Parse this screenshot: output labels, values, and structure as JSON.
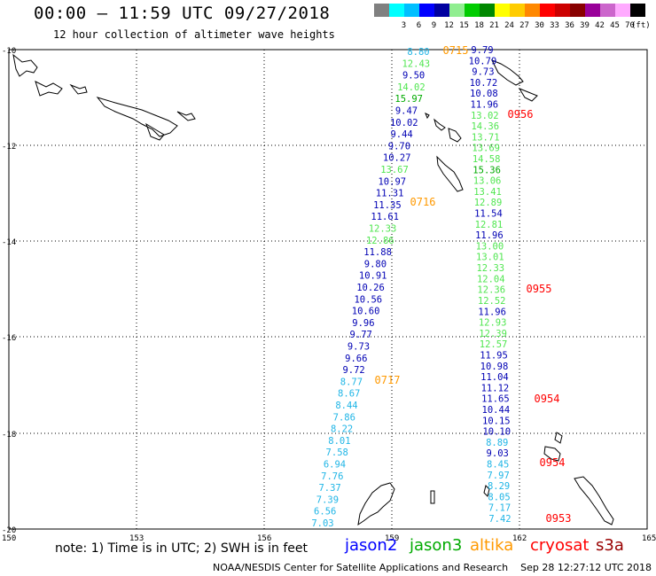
{
  "header": {
    "title": "00:00 – 11:59 UTC 09/27/2018",
    "subtitle": "12 hour collection of altimeter wave heights"
  },
  "scale": {
    "unit": "(ft)",
    "swatches": [
      {
        "color": "#808080",
        "label": ""
      },
      {
        "color": "#00ffff",
        "label": "3"
      },
      {
        "color": "#00bfff",
        "label": "6"
      },
      {
        "color": "#0000ff",
        "label": "9"
      },
      {
        "color": "#0000a0",
        "label": "12"
      },
      {
        "color": "#90ee90",
        "label": "15"
      },
      {
        "color": "#00cc00",
        "label": "18"
      },
      {
        "color": "#008800",
        "label": "21"
      },
      {
        "color": "#ffff00",
        "label": "24"
      },
      {
        "color": "#ffcc00",
        "label": "27"
      },
      {
        "color": "#ff8800",
        "label": "30"
      },
      {
        "color": "#ff0000",
        "label": "33"
      },
      {
        "color": "#cc0000",
        "label": "36"
      },
      {
        "color": "#880000",
        "label": "39"
      },
      {
        "color": "#990099",
        "label": "42"
      },
      {
        "color": "#cc66cc",
        "label": "45"
      },
      {
        "color": "#ffaaff",
        "label": "70"
      },
      {
        "color": "#000000",
        "label": ""
      }
    ]
  },
  "map": {
    "lat_labels": [
      "-10",
      "-12",
      "-14",
      "-16",
      "-18",
      "-20"
    ],
    "lon_labels": [
      "150",
      "153",
      "156",
      "159",
      "162",
      "165"
    ],
    "colors": {
      "cyan": "#1fb5e6",
      "navy": "#0000b4",
      "lgreen": "#50e650",
      "orange": "#ff9900",
      "red": "#ff0000"
    },
    "west_track": [
      {
        "v": "8.80",
        "c": "cyan"
      },
      {
        "v": "12.43",
        "c": "lgreen"
      },
      {
        "v": "9.50",
        "c": "navy"
      },
      {
        "v": "14.02",
        "c": "lgreen"
      },
      {
        "v": "15.97",
        "c": "green"
      },
      {
        "v": "9.47",
        "c": "navy"
      },
      {
        "v": "10.02",
        "c": "navy"
      },
      {
        "v": "9.44",
        "c": "navy"
      },
      {
        "v": "9.70",
        "c": "navy"
      },
      {
        "v": "10.27",
        "c": "navy"
      },
      {
        "v": "13.67",
        "c": "lgreen"
      },
      {
        "v": "10.97",
        "c": "navy"
      },
      {
        "v": "11.31",
        "c": "navy"
      },
      {
        "v": "11.35",
        "c": "navy"
      },
      {
        "v": "11.61",
        "c": "navy"
      },
      {
        "v": "12.33",
        "c": "lgreen"
      },
      {
        "v": "12.86",
        "c": "lgreen"
      },
      {
        "v": "11.88",
        "c": "navy"
      },
      {
        "v": "9.80",
        "c": "navy"
      },
      {
        "v": "10.91",
        "c": "navy"
      },
      {
        "v": "10.26",
        "c": "navy"
      },
      {
        "v": "10.56",
        "c": "navy"
      },
      {
        "v": "10.60",
        "c": "navy"
      },
      {
        "v": "9.96",
        "c": "navy"
      },
      {
        "v": "9.77",
        "c": "navy"
      },
      {
        "v": "9.73",
        "c": "navy"
      },
      {
        "v": "9.66",
        "c": "navy"
      },
      {
        "v": "9.72",
        "c": "navy"
      },
      {
        "v": "8.77",
        "c": "cyan"
      },
      {
        "v": "8.67",
        "c": "cyan"
      },
      {
        "v": "8.44",
        "c": "cyan"
      },
      {
        "v": "7.86",
        "c": "cyan"
      },
      {
        "v": "8.22",
        "c": "cyan"
      },
      {
        "v": "8.01",
        "c": "cyan"
      },
      {
        "v": "7.58",
        "c": "cyan"
      },
      {
        "v": "6.94",
        "c": "cyan"
      },
      {
        "v": "7.76",
        "c": "cyan"
      },
      {
        "v": "7.37",
        "c": "cyan"
      },
      {
        "v": "7.39",
        "c": "cyan"
      },
      {
        "v": "6.56",
        "c": "cyan"
      },
      {
        "v": "7.03",
        "c": "cyan"
      }
    ],
    "east_track": [
      {
        "v": "9.79",
        "c": "navy"
      },
      {
        "v": "10.79",
        "c": "navy"
      },
      {
        "v": "9.73",
        "c": "navy"
      },
      {
        "v": "10.72",
        "c": "navy"
      },
      {
        "v": "10.08",
        "c": "navy"
      },
      {
        "v": "11.96",
        "c": "navy"
      },
      {
        "v": "13.02",
        "c": "lgreen"
      },
      {
        "v": "14.36",
        "c": "lgreen"
      },
      {
        "v": "13.71",
        "c": "lgreen"
      },
      {
        "v": "13.69",
        "c": "lgreen"
      },
      {
        "v": "14.58",
        "c": "lgreen"
      },
      {
        "v": "15.36",
        "c": "green"
      },
      {
        "v": "13.06",
        "c": "lgreen"
      },
      {
        "v": "13.41",
        "c": "lgreen"
      },
      {
        "v": "12.89",
        "c": "lgreen"
      },
      {
        "v": "11.54",
        "c": "navy"
      },
      {
        "v": "12.81",
        "c": "lgreen"
      },
      {
        "v": "11.96",
        "c": "navy"
      },
      {
        "v": "13.00",
        "c": "lgreen"
      },
      {
        "v": "13.01",
        "c": "lgreen"
      },
      {
        "v": "12.33",
        "c": "lgreen"
      },
      {
        "v": "12.04",
        "c": "lgreen"
      },
      {
        "v": "12.36",
        "c": "lgreen"
      },
      {
        "v": "12.52",
        "c": "lgreen"
      },
      {
        "v": "11.96",
        "c": "navy"
      },
      {
        "v": "12.93",
        "c": "lgreen"
      },
      {
        "v": "12.39",
        "c": "lgreen"
      },
      {
        "v": "12.57",
        "c": "lgreen"
      },
      {
        "v": "11.95",
        "c": "navy"
      },
      {
        "v": "10.98",
        "c": "navy"
      },
      {
        "v": "11.04",
        "c": "navy"
      },
      {
        "v": "11.12",
        "c": "navy"
      },
      {
        "v": "11.65",
        "c": "navy"
      },
      {
        "v": "10.44",
        "c": "navy"
      },
      {
        "v": "10.15",
        "c": "navy"
      },
      {
        "v": "10.10",
        "c": "navy"
      },
      {
        "v": "8.89",
        "c": "cyan"
      },
      {
        "v": "9.03",
        "c": "navy"
      },
      {
        "v": "8.45",
        "c": "cyan"
      },
      {
        "v": "7.97",
        "c": "cyan"
      },
      {
        "v": "8.29",
        "c": "cyan"
      },
      {
        "v": "8.05",
        "c": "cyan"
      },
      {
        "v": "7.17",
        "c": "cyan"
      },
      {
        "v": "7.42",
        "c": "cyan"
      }
    ],
    "time_labels": [
      {
        "t": "0715",
        "c": "orange"
      },
      {
        "t": "0716",
        "c": "orange"
      },
      {
        "t": "0717",
        "c": "orange"
      },
      {
        "t": "0956",
        "c": "red"
      },
      {
        "t": "0955",
        "c": "red"
      },
      {
        "t": "0954",
        "c": "red"
      },
      {
        "t": "0954",
        "c": "red"
      },
      {
        "t": "0953",
        "c": "red"
      }
    ]
  },
  "footer": {
    "note": "note: 1) Time is in UTC; 2) SWH is in feet",
    "satellites": [
      {
        "name": "jason2",
        "color": "#0000ff"
      },
      {
        "name": "jason3",
        "color": "#00aa00"
      },
      {
        "name": "altika",
        "color": "#ff9900"
      },
      {
        "name": "cryosat",
        "color": "#ff0000"
      },
      {
        "name": "s3a",
        "color": "#990000"
      }
    ],
    "credit": "NOAA/NESDIS Center for Satellite Applications and Research    Sep 28 12:27:12 UTC 2018"
  }
}
